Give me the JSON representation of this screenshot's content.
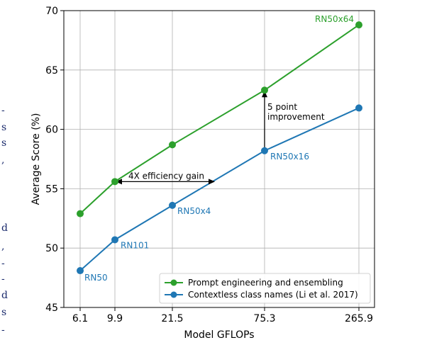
{
  "chart_data": {
    "type": "line",
    "xlabel": "Model GFLOPs",
    "ylabel": "Average Score (%)",
    "categories": [
      "6.1",
      "9.9",
      "21.5",
      "75.3",
      "265.9"
    ],
    "x": [
      6.1,
      9.9,
      21.5,
      75.3,
      265.9
    ],
    "xscale": "log",
    "ylim": [
      45,
      70
    ],
    "yticks": [
      45,
      50,
      55,
      60,
      65,
      70
    ],
    "grid": true,
    "legend_position": "lower-right",
    "series": [
      {
        "name": "Prompt engineering and ensembling",
        "color": "#2ca02c",
        "values": [
          52.9,
          55.6,
          58.7,
          63.3,
          68.8
        ],
        "point_labels": [
          "",
          "",
          "",
          "",
          "RN50x64"
        ]
      },
      {
        "name": "Contextless class names (Li et al. 2017)",
        "color": "#1f77b4",
        "values": [
          48.1,
          50.7,
          53.6,
          58.2,
          61.8
        ],
        "point_labels": [
          "RN50",
          "RN101",
          "RN50x4",
          "RN50x16",
          ""
        ]
      }
    ],
    "annotations": {
      "efficiency": "4X efficiency gain",
      "improvement_line1": "5 point",
      "improvement_line2": "improvement"
    }
  },
  "edge_marks": [
    "-",
    "s",
    "s",
    ",",
    "d",
    ",",
    "-",
    "-",
    "d",
    "s",
    "-"
  ]
}
